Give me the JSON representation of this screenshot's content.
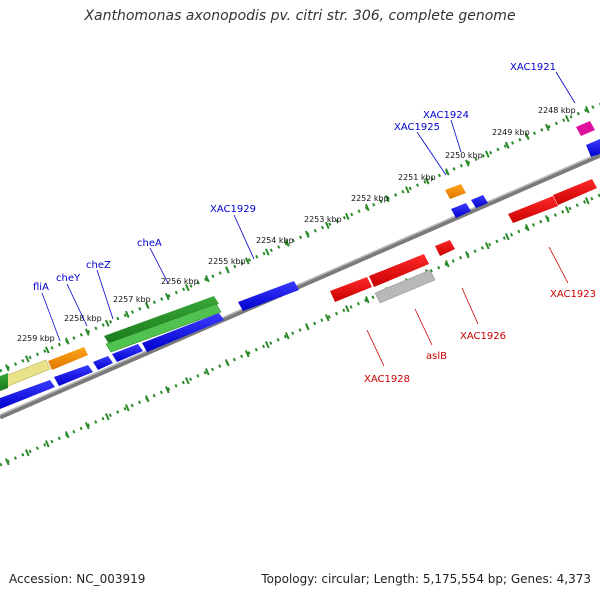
{
  "title": "Xanthomonas axonopodis pv. citri str. 306, complete genome",
  "footer": {
    "accession": "Accession: NC_003919",
    "topology": "Topology: circular; Length: 5,175,554 bp; Genes: 4,373"
  },
  "colors": {
    "forward_gene": "#0000ee",
    "reverse_gene": "#ee0000",
    "upper_label": "#0000cc",
    "lower_label": "#cc0000",
    "ruler_dot": "#2a8a2a",
    "backbone": "#888888",
    "green_gene": "#228b22",
    "orange_gene": "#ff8c00",
    "pink_gene": "#e0109f",
    "khaki_gene": "#e9e28a",
    "grey_gene": "#b0b0b0"
  },
  "ruler_ticks": [
    "2248 kbp",
    "2249 kbp",
    "2250 kbp",
    "2251 kbp",
    "2252 kbp",
    "2253 kbp",
    "2254 kbp",
    "2255 kbp",
    "2256 kbp",
    "2257 kbp",
    "2258 kbp",
    "2259 kbp"
  ],
  "upper_labels": [
    "XAC1921",
    "XAC1924",
    "XAC1925",
    "XAC1929",
    "cheA",
    "cheZ",
    "cheY",
    "fliA"
  ],
  "lower_labels": [
    "XAC1923",
    "XAC1926",
    "aslB",
    "XAC1928"
  ]
}
